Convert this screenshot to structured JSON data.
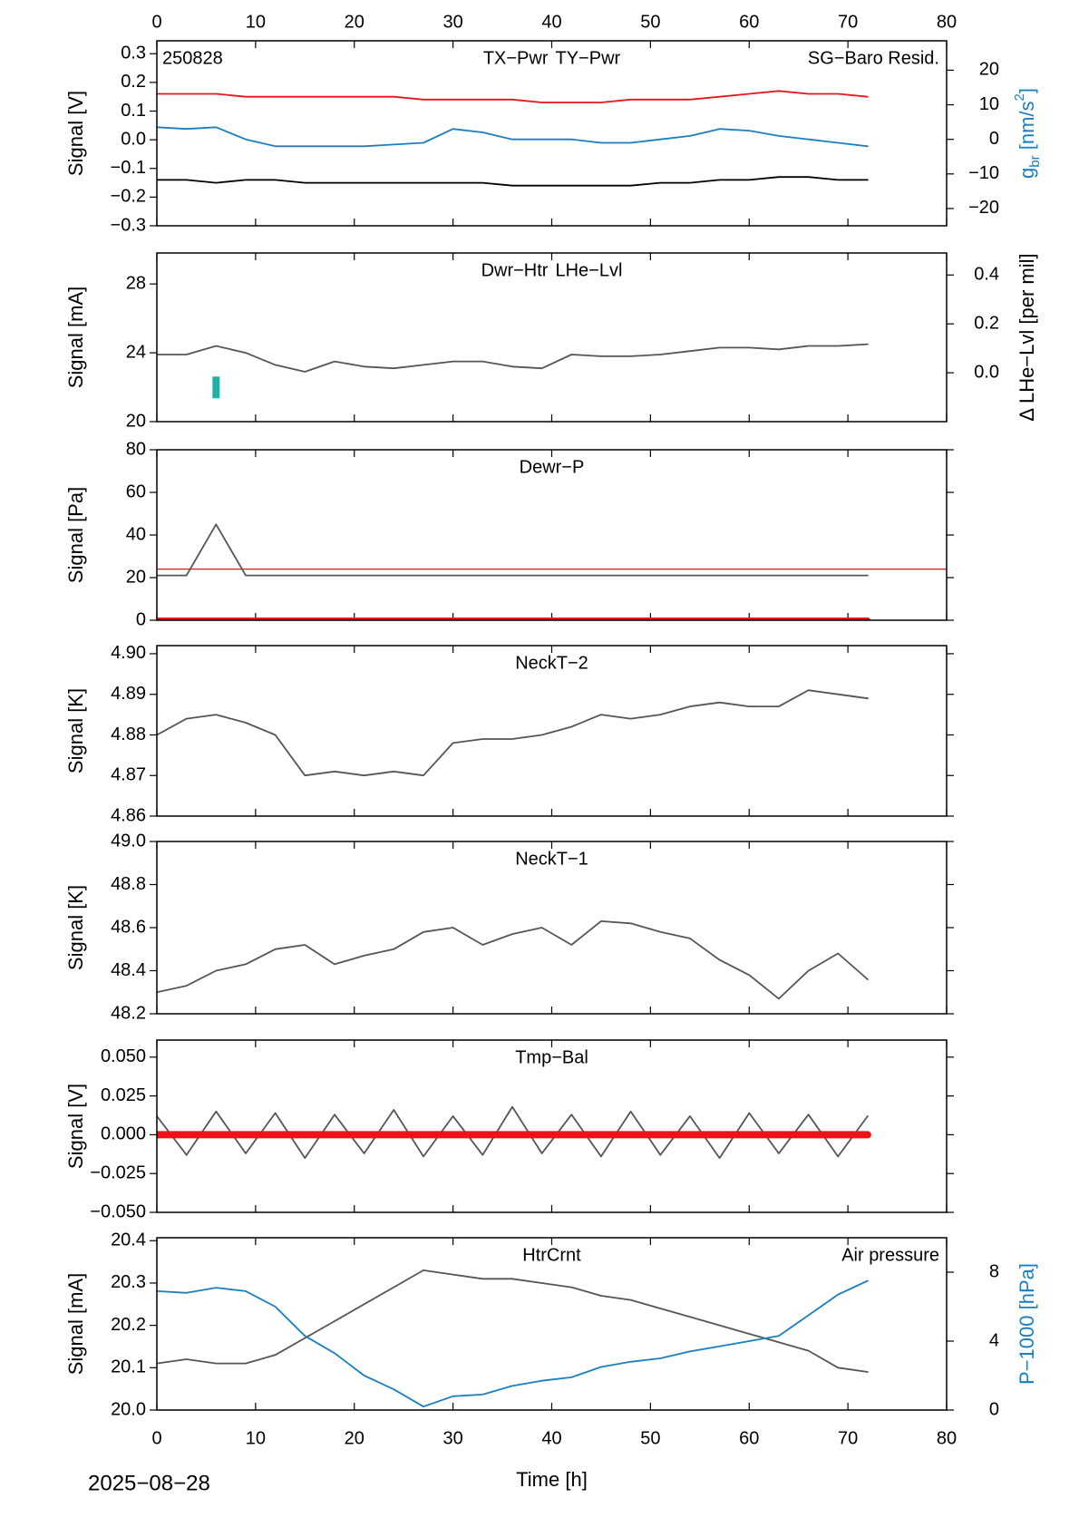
{
  "chart_data": [
    {
      "type": "line",
      "ylabel": "Signal [V]",
      "y2label": [
        "g",
        "br",
        " [nm/s",
        "2",
        "]"
      ],
      "annotation": "250828",
      "xlim": [
        0,
        80
      ],
      "xticks": [
        0,
        10,
        20,
        30,
        40,
        50,
        60,
        70,
        80
      ],
      "ylim": [
        -0.3,
        0.345
      ],
      "yticks": [
        {
          "value": -0.3,
          "label": "−0.3"
        },
        {
          "value": -0.2,
          "label": "−0.2"
        },
        {
          "value": -0.1,
          "label": "−0.1"
        },
        {
          "value": 0,
          "label": "0.0"
        },
        0.1,
        0.2,
        0.3
      ],
      "y2lim": [
        -25,
        28.5
      ],
      "y2ticks": [
        {
          "value": -20,
          "label": "−20"
        },
        {
          "value": -10,
          "label": "−10"
        },
        0,
        10,
        20
      ],
      "x": [
        0,
        3,
        6,
        9,
        12,
        15,
        18,
        21,
        24,
        27,
        30,
        33,
        36,
        39,
        42,
        45,
        48,
        51,
        54,
        57,
        60,
        63,
        66,
        69,
        72
      ],
      "series": [
        {
          "name": "TX−Pwr",
          "color": "#000000",
          "values": [
            -0.14,
            -0.14,
            -0.15,
            -0.14,
            -0.14,
            -0.15,
            -0.15,
            -0.15,
            -0.15,
            -0.15,
            -0.15,
            -0.15,
            -0.16,
            -0.16,
            -0.16,
            -0.16,
            -0.16,
            -0.15,
            -0.15,
            -0.14,
            -0.14,
            -0.13,
            -0.13,
            -0.14,
            -0.14
          ]
        },
        {
          "name": "TY−Pwr",
          "color": "#e8141b",
          "values": [
            0.16,
            0.16,
            0.16,
            0.15,
            0.15,
            0.15,
            0.15,
            0.15,
            0.15,
            0.14,
            0.14,
            0.14,
            0.14,
            0.13,
            0.13,
            0.13,
            0.14,
            0.14,
            0.14,
            0.15,
            0.16,
            0.17,
            0.16,
            0.16,
            0.15
          ]
        },
        {
          "name": "SG−Baro Resid.",
          "color": "#1a7fc0",
          "axis": "y2",
          "legend": "top-right",
          "values": [
            3.5,
            3,
            3.5,
            0,
            -2,
            -2,
            -2,
            -2,
            -1.5,
            -1,
            3,
            2,
            0,
            0,
            0,
            -1,
            -1,
            0,
            1,
            3,
            2.5,
            1,
            0,
            -1,
            -2
          ]
        }
      ]
    },
    {
      "type": "line",
      "ylabel": "Signal [mA]",
      "y2label": [
        "Δ LHe−Lvl [per mil]"
      ],
      "xlim": [
        0,
        80
      ],
      "xticks": [
        0,
        10,
        20,
        30,
        40,
        50,
        60,
        70,
        80
      ],
      "ylim": [
        20,
        29.8
      ],
      "yticks": [
        20,
        24,
        28
      ],
      "y2lim": [
        -0.2,
        0.49
      ],
      "y2ticks": [
        {
          "value": 0,
          "label": "0.0"
        },
        0.2,
        0.4
      ],
      "x": [
        0,
        3,
        6,
        9,
        12,
        15,
        18,
        21,
        24,
        27,
        30,
        33,
        36,
        39,
        42,
        45,
        48,
        51,
        54,
        57,
        60,
        63,
        66,
        69,
        72
      ],
      "series": [
        {
          "name": "Dwr−Htr",
          "color": "#555555",
          "values": [
            23.9,
            23.9,
            24.4,
            24.0,
            23.3,
            22.9,
            23.5,
            23.2,
            23.1,
            23.3,
            23.5,
            23.5,
            23.2,
            23.1,
            23.9,
            23.8,
            23.8,
            23.9,
            24.1,
            24.3,
            24.3,
            24.2,
            24.4,
            24.4,
            24.5
          ]
        },
        {
          "name": "LHe−Lvl",
          "color": "#20b2aa",
          "axis": "y2",
          "values": [
            null,
            null,
            -0.06,
            null,
            null,
            null,
            null,
            null,
            null,
            null,
            null,
            null,
            null,
            null,
            null,
            null,
            null,
            null,
            null,
            null,
            null,
            null,
            null,
            null,
            null
          ]
        }
      ]
    },
    {
      "type": "line",
      "ylabel": "Signal [Pa]",
      "xlim": [
        0,
        80
      ],
      "xticks": [
        0,
        10,
        20,
        30,
        40,
        50,
        60,
        70,
        80
      ],
      "ylim": [
        0,
        80
      ],
      "yticks": [
        0,
        20,
        40,
        60,
        80
      ],
      "hline": {
        "value": 24,
        "color": "#e8141b"
      },
      "x": [
        0,
        3,
        6,
        9,
        12,
        15,
        18,
        21,
        24,
        27,
        30,
        33,
        36,
        39,
        42,
        45,
        48,
        51,
        54,
        57,
        60,
        63,
        66,
        69,
        72
      ],
      "series": [
        {
          "name": "Dewr−P",
          "color": "#555555",
          "values": [
            21,
            21,
            45,
            21,
            21,
            21,
            21,
            21,
            21,
            21,
            21,
            21,
            21,
            21,
            21,
            21,
            21,
            21,
            21,
            21,
            21,
            21,
            21,
            21,
            21
          ]
        },
        {
          "color": "#e8141b",
          "linewidth": 6,
          "values": [
            0,
            0,
            0,
            0,
            0,
            0,
            0,
            0,
            0,
            0,
            0,
            0,
            0,
            0,
            0,
            0,
            0,
            0,
            0,
            0,
            0,
            0,
            0,
            0,
            0
          ]
        }
      ]
    },
    {
      "type": "line",
      "ylabel": "Signal [K]",
      "xlim": [
        0,
        80
      ],
      "xticks": [
        0,
        10,
        20,
        30,
        40,
        50,
        60,
        70,
        80
      ],
      "ylim": [
        4.86,
        4.902
      ],
      "yticks": [
        4.86,
        4.87,
        4.88,
        4.89,
        {
          "value": 4.9,
          "label": "4.90"
        }
      ],
      "x": [
        0,
        3,
        6,
        9,
        12,
        15,
        18,
        21,
        24,
        27,
        30,
        33,
        36,
        39,
        42,
        45,
        48,
        51,
        54,
        57,
        60,
        63,
        66,
        69,
        72
      ],
      "series": [
        {
          "name": "NeckT−2",
          "color": "#555555",
          "values": [
            4.88,
            4.884,
            4.885,
            4.883,
            4.88,
            4.87,
            4.871,
            4.87,
            4.871,
            4.87,
            4.878,
            4.879,
            4.879,
            4.88,
            4.882,
            4.885,
            4.884,
            4.885,
            4.887,
            4.888,
            4.887,
            4.887,
            4.891,
            4.89,
            4.889
          ]
        }
      ]
    },
    {
      "type": "line",
      "ylabel": "Signal [K]",
      "xlim": [
        0,
        80
      ],
      "xticks": [
        0,
        10,
        20,
        30,
        40,
        50,
        60,
        70,
        80
      ],
      "ylim": [
        48.2,
        49.0
      ],
      "yticks": [
        48.2,
        48.4,
        48.6,
        48.8,
        {
          "value": 49,
          "label": "49.0"
        }
      ],
      "x": [
        0,
        3,
        6,
        9,
        12,
        15,
        18,
        21,
        24,
        27,
        30,
        33,
        36,
        39,
        42,
        45,
        48,
        51,
        54,
        57,
        60,
        63,
        66,
        69,
        72
      ],
      "series": [
        {
          "name": "NeckT−1",
          "color": "#555555",
          "values": [
            48.3,
            48.33,
            48.4,
            48.43,
            48.5,
            48.52,
            48.43,
            48.47,
            48.5,
            48.58,
            48.6,
            48.52,
            48.57,
            48.6,
            48.52,
            48.63,
            48.62,
            48.58,
            48.55,
            48.45,
            48.38,
            48.27,
            48.4,
            48.48,
            48.36
          ]
        }
      ]
    },
    {
      "type": "line",
      "ylabel": "Signal [V]",
      "xlim": [
        0,
        80
      ],
      "xticks": [
        0,
        10,
        20,
        30,
        40,
        50,
        60,
        70,
        80
      ],
      "ylim": [
        -0.05,
        0.061
      ],
      "yticks": [
        {
          "value": -0.05,
          "label": "−0.050"
        },
        {
          "value": -0.025,
          "label": "−0.025"
        },
        {
          "value": 0,
          "label": "0.000"
        },
        {
          "value": 0.025,
          "label": "0.025"
        },
        {
          "value": 0.05,
          "label": "0.050"
        }
      ],
      "x": [
        0,
        3,
        6,
        9,
        12,
        15,
        18,
        21,
        24,
        27,
        30,
        33,
        36,
        39,
        42,
        45,
        48,
        51,
        54,
        57,
        60,
        63,
        66,
        69,
        72
      ],
      "series": [
        {
          "name": "Tmp−Bal",
          "color": "#555555",
          "values": [
            0.012,
            -0.013,
            0.015,
            -0.012,
            0.014,
            -0.015,
            0.013,
            -0.012,
            0.016,
            -0.014,
            0.012,
            -0.013,
            0.018,
            -0.012,
            0.013,
            -0.014,
            0.015,
            -0.013,
            0.012,
            -0.015,
            0.014,
            -0.012,
            0.013,
            -0.014,
            0.012
          ]
        },
        {
          "color": "#e8141b",
          "linewidth": 8,
          "values": [
            0,
            0,
            0,
            0,
            0,
            0,
            0,
            0,
            0,
            0,
            0,
            0,
            0,
            0,
            0,
            0,
            0,
            0,
            0,
            0,
            0,
            0,
            0,
            0,
            0
          ]
        }
      ]
    },
    {
      "type": "line",
      "ylabel": "Signal [mA]",
      "y2label": [
        "P−1000 [hPa]"
      ],
      "y2color": "#1a7fc0",
      "xlabel": "Time [h]",
      "footnote": "2025−08−28",
      "xlim": [
        0,
        80
      ],
      "xticks": [
        0,
        10,
        20,
        30,
        40,
        50,
        60,
        70,
        80
      ],
      "ylim": [
        20.0,
        20.407
      ],
      "yticks": [
        {
          "value": 20,
          "label": "20.0"
        },
        20.1,
        20.2,
        20.3,
        20.4
      ],
      "y2lim": [
        0,
        10
      ],
      "y2ticks": [
        0,
        4,
        8
      ],
      "x": [
        0,
        3,
        6,
        9,
        12,
        15,
        18,
        21,
        24,
        27,
        30,
        33,
        36,
        39,
        42,
        45,
        48,
        51,
        54,
        57,
        60,
        63,
        66,
        69,
        72
      ],
      "series": [
        {
          "name": "HtrCrnt",
          "color": "#555555",
          "values": [
            20.11,
            20.12,
            20.11,
            20.11,
            20.13,
            20.17,
            20.21,
            20.25,
            20.29,
            20.33,
            20.32,
            20.31,
            20.31,
            20.3,
            20.29,
            20.27,
            20.26,
            20.24,
            20.22,
            20.2,
            20.18,
            20.16,
            20.14,
            20.1,
            20.09
          ]
        },
        {
          "name": "Air pressure",
          "color": "#1a7fc0",
          "axis": "y2",
          "legend": "top-right",
          "values": [
            6.9,
            6.8,
            7.1,
            6.9,
            6.0,
            4.3,
            3.3,
            2.0,
            1.2,
            0.2,
            0.8,
            0.9,
            1.4,
            1.7,
            1.9,
            2.5,
            2.8,
            3.0,
            3.4,
            3.7,
            4.0,
            4.3,
            5.5,
            6.7,
            7.5
          ]
        }
      ]
    }
  ]
}
